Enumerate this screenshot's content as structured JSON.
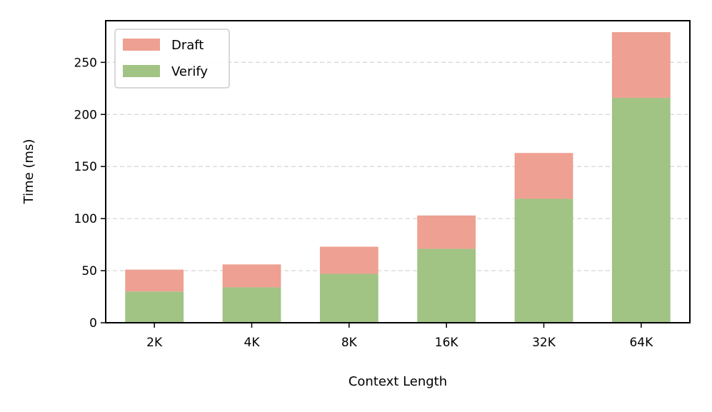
{
  "chart_data": {
    "type": "bar",
    "stacked": true,
    "categories": [
      "2K",
      "4K",
      "8K",
      "16K",
      "32K",
      "64K"
    ],
    "series": [
      {
        "name": "Verify",
        "values": [
          30,
          34,
          47,
          71,
          119,
          216
        ],
        "color": "#a1c384"
      },
      {
        "name": "Draft",
        "values": [
          21,
          22,
          26,
          32,
          44,
          63
        ],
        "color": "#eea092"
      }
    ],
    "xlabel": "Context Length",
    "ylabel": "Time (ms)",
    "ylim": [
      0,
      290
    ],
    "yticks": [
      0,
      50,
      100,
      150,
      200,
      250
    ],
    "grid": "y-dashed",
    "legend": [
      "Draft",
      "Verify"
    ],
    "legend_position": "upper left"
  }
}
